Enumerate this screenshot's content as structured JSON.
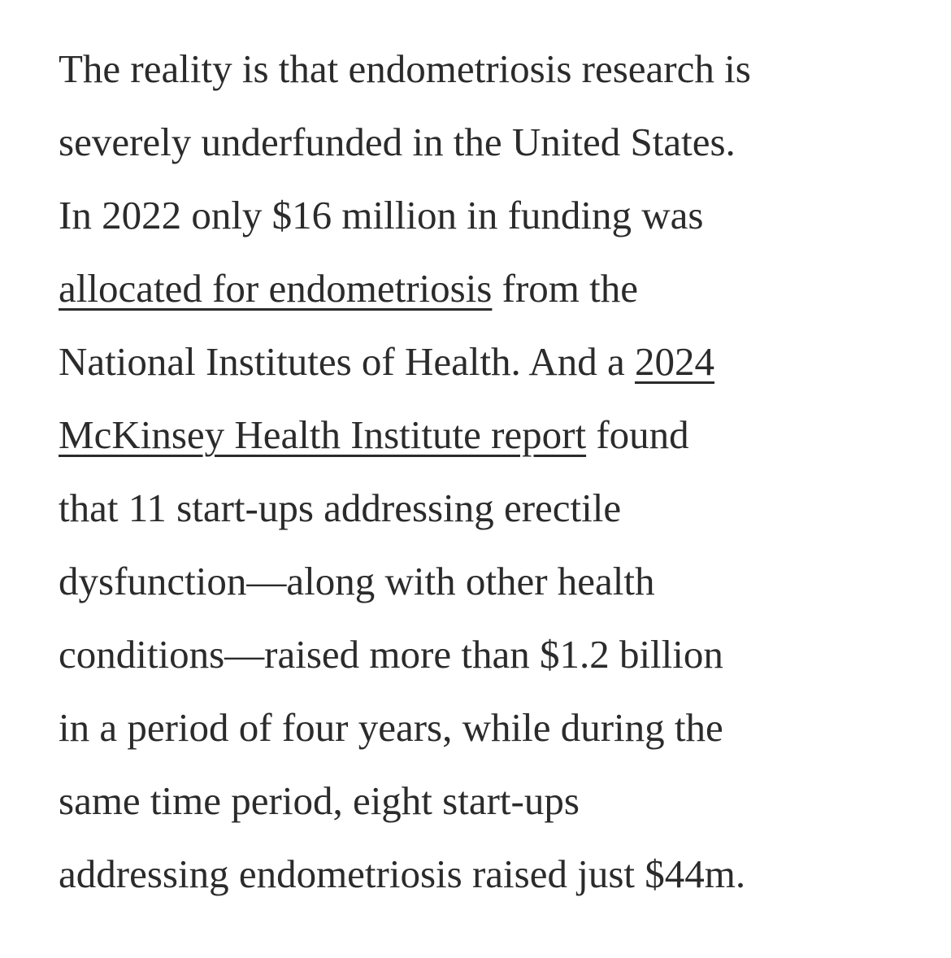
{
  "article": {
    "text_color": "#2b2b2b",
    "lines": [
      [
        "The reality is that endometriosis research is"
      ],
      [
        "severely underfunded in the United States."
      ],
      [
        "In 2022 only $16 million in funding was"
      ],
      [
        "allocated for endometriosis",
        " from the"
      ],
      [
        "National Institutes of Health. And a ",
        "2024"
      ],
      [
        "McKinsey Health Institute report",
        " found"
      ],
      [
        "that 11 start-ups addressing erectile"
      ],
      [
        "dysfunction—along with other health"
      ],
      [
        "conditions—raised more than $1.2 billion"
      ],
      [
        "in a period of four years, while during the"
      ],
      [
        "same time period, eight start-ups"
      ],
      [
        "addressing endometriosis raised just $44m."
      ]
    ]
  }
}
